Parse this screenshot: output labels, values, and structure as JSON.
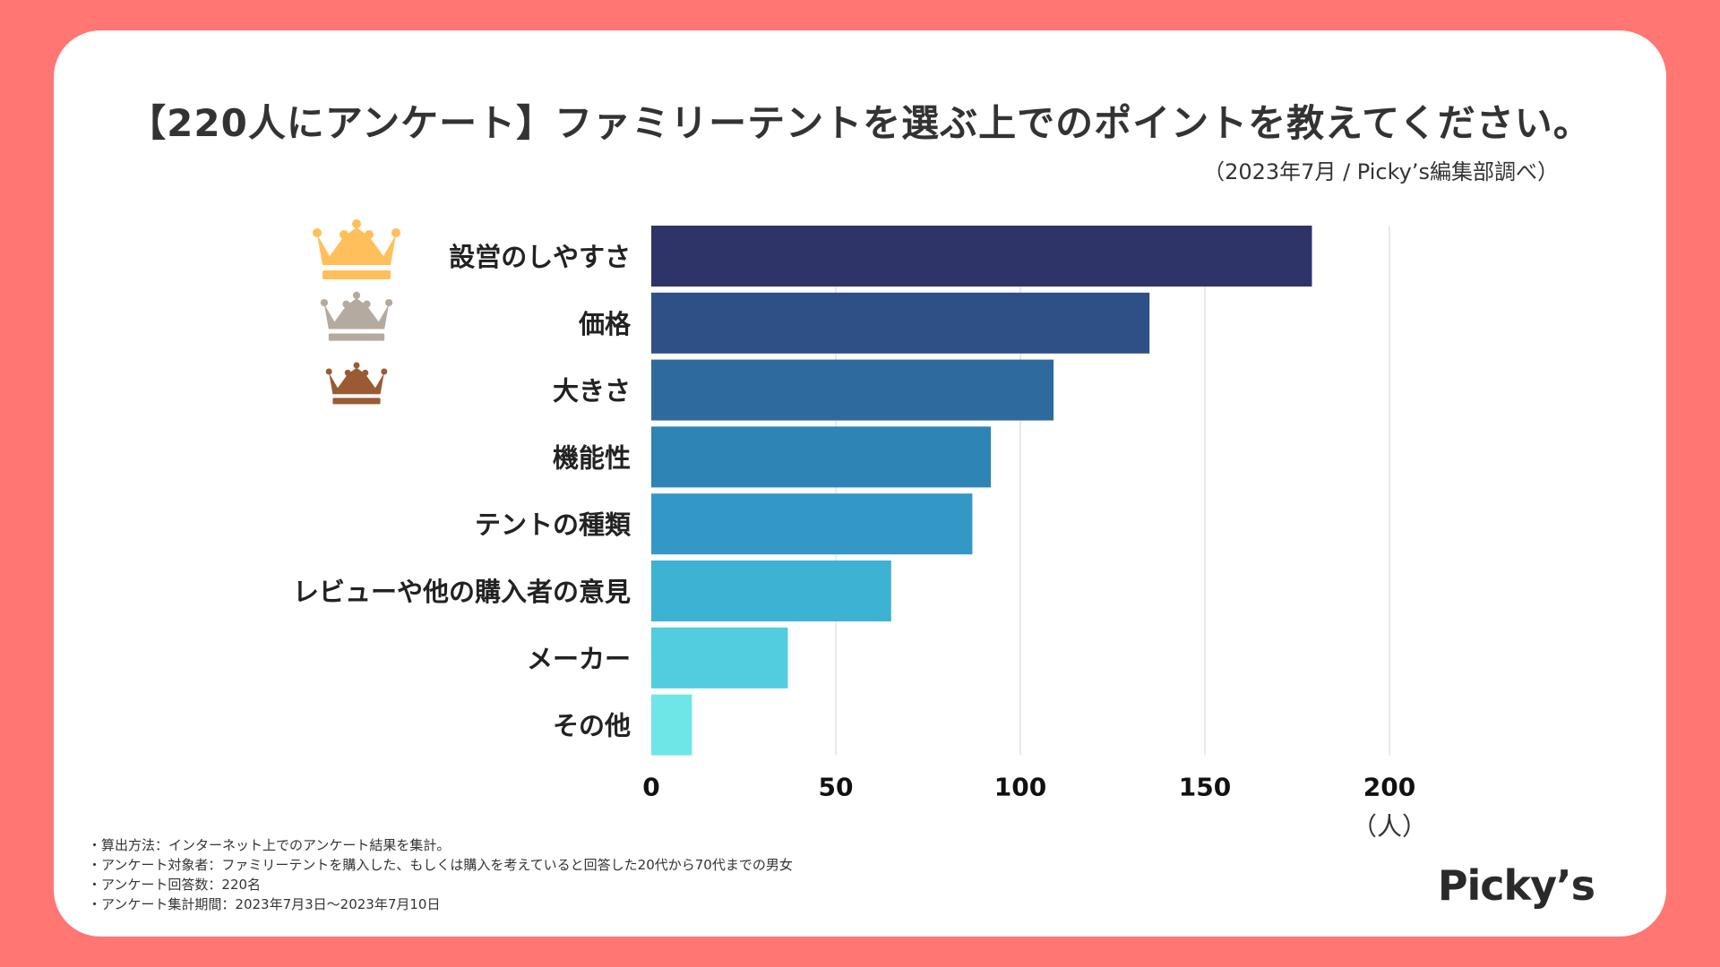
{
  "title": "【220人にアンケート】ファミリーテントを選ぶ上でのポイントを教えてください。",
  "subtitle": "（2023年7月 / Picky’s編集部調べ）",
  "chart_data": {
    "type": "bar",
    "orientation": "horizontal",
    "categories": [
      "設営のしやすさ",
      "価格",
      "大きさ",
      "機能性",
      "テントの種類",
      "レビューや他の購入者の意見",
      "メーカー",
      "その他"
    ],
    "values": [
      179,
      135,
      109,
      92,
      87,
      65,
      37,
      11
    ],
    "colors": [
      "#2f3468",
      "#2f4f87",
      "#2f6a9e",
      "#2e84b5",
      "#3398c5",
      "#3db2d3",
      "#52cde0",
      "#6ee6e8"
    ],
    "xlim": [
      0,
      200
    ],
    "xticks": [
      "0",
      "50",
      "100",
      "150",
      "200"
    ],
    "xlabel": "（人）",
    "grid": true,
    "rank_icons": [
      {
        "rank": 1,
        "name": "gold-crown-icon",
        "color": "#ffbf5a"
      },
      {
        "rank": 2,
        "name": "silver-crown-icon",
        "color": "#b4aa9f"
      },
      {
        "rank": 3,
        "name": "bronze-crown-icon",
        "color": "#9a5a34"
      }
    ]
  },
  "notes": [
    "・算出方法：インターネット上でのアンケート結果を集計。",
    "・アンケート対象者：ファミリーテントを購入した、もしくは購入を考えていると回答した20代から70代までの男女",
    "・アンケート回答数：220名",
    "・アンケート集計期間：2023年7月3日〜2023年7月10日"
  ],
  "logo": "Picky’s"
}
